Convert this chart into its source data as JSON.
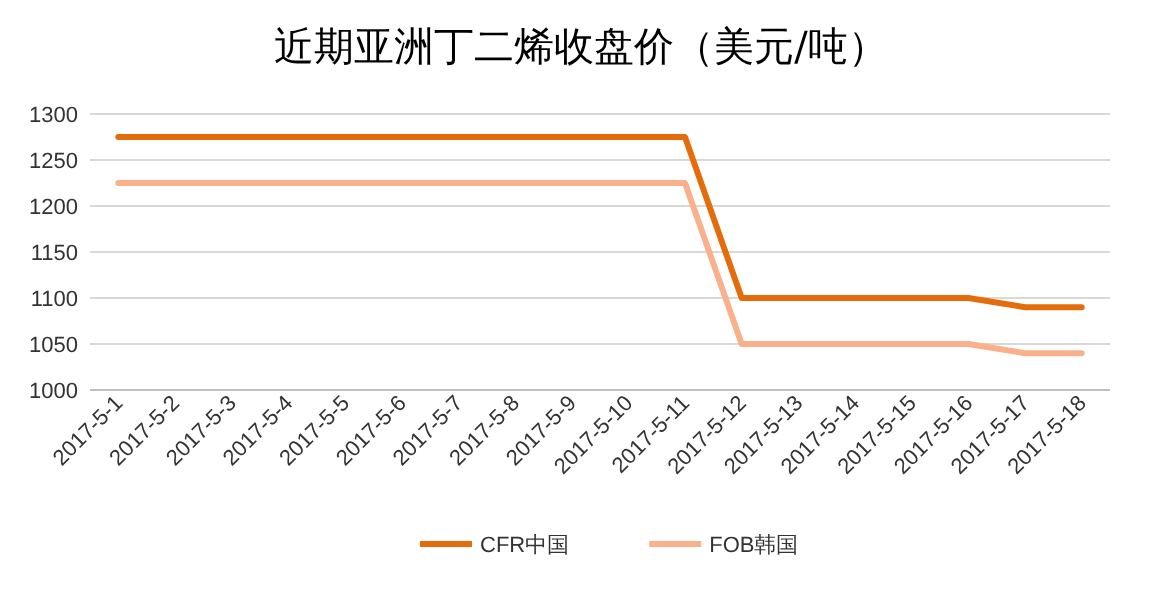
{
  "chart_data": {
    "type": "line",
    "title": "近期亚洲丁二烯收盘价（美元/吨）",
    "categories": [
      "2017-5-1",
      "2017-5-2",
      "2017-5-3",
      "2017-5-4",
      "2017-5-5",
      "2017-5-6",
      "2017-5-7",
      "2017-5-8",
      "2017-5-9",
      "2017-5-10",
      "2017-5-11",
      "2017-5-12",
      "2017-5-13",
      "2017-5-14",
      "2017-5-15",
      "2017-5-16",
      "2017-5-17",
      "2017-5-18"
    ],
    "series": [
      {
        "name": "CFR中国",
        "color": "#e46c0a",
        "values": [
          1275,
          1275,
          1275,
          1275,
          1275,
          1275,
          1275,
          1275,
          1275,
          1275,
          1275,
          1100,
          1100,
          1100,
          1100,
          1100,
          1090,
          1090
        ]
      },
      {
        "name": "FOB韩国",
        "color": "#fab08a",
        "values": [
          1225,
          1225,
          1225,
          1225,
          1225,
          1225,
          1225,
          1225,
          1225,
          1225,
          1225,
          1050,
          1050,
          1050,
          1050,
          1050,
          1040,
          1040
        ]
      }
    ],
    "ylim": [
      1000,
      1300
    ],
    "yticks": [
      1000,
      1050,
      1100,
      1150,
      1200,
      1250,
      1300
    ],
    "grid": "y",
    "legend": "bottom",
    "marker": "none",
    "line_style": "solid"
  }
}
